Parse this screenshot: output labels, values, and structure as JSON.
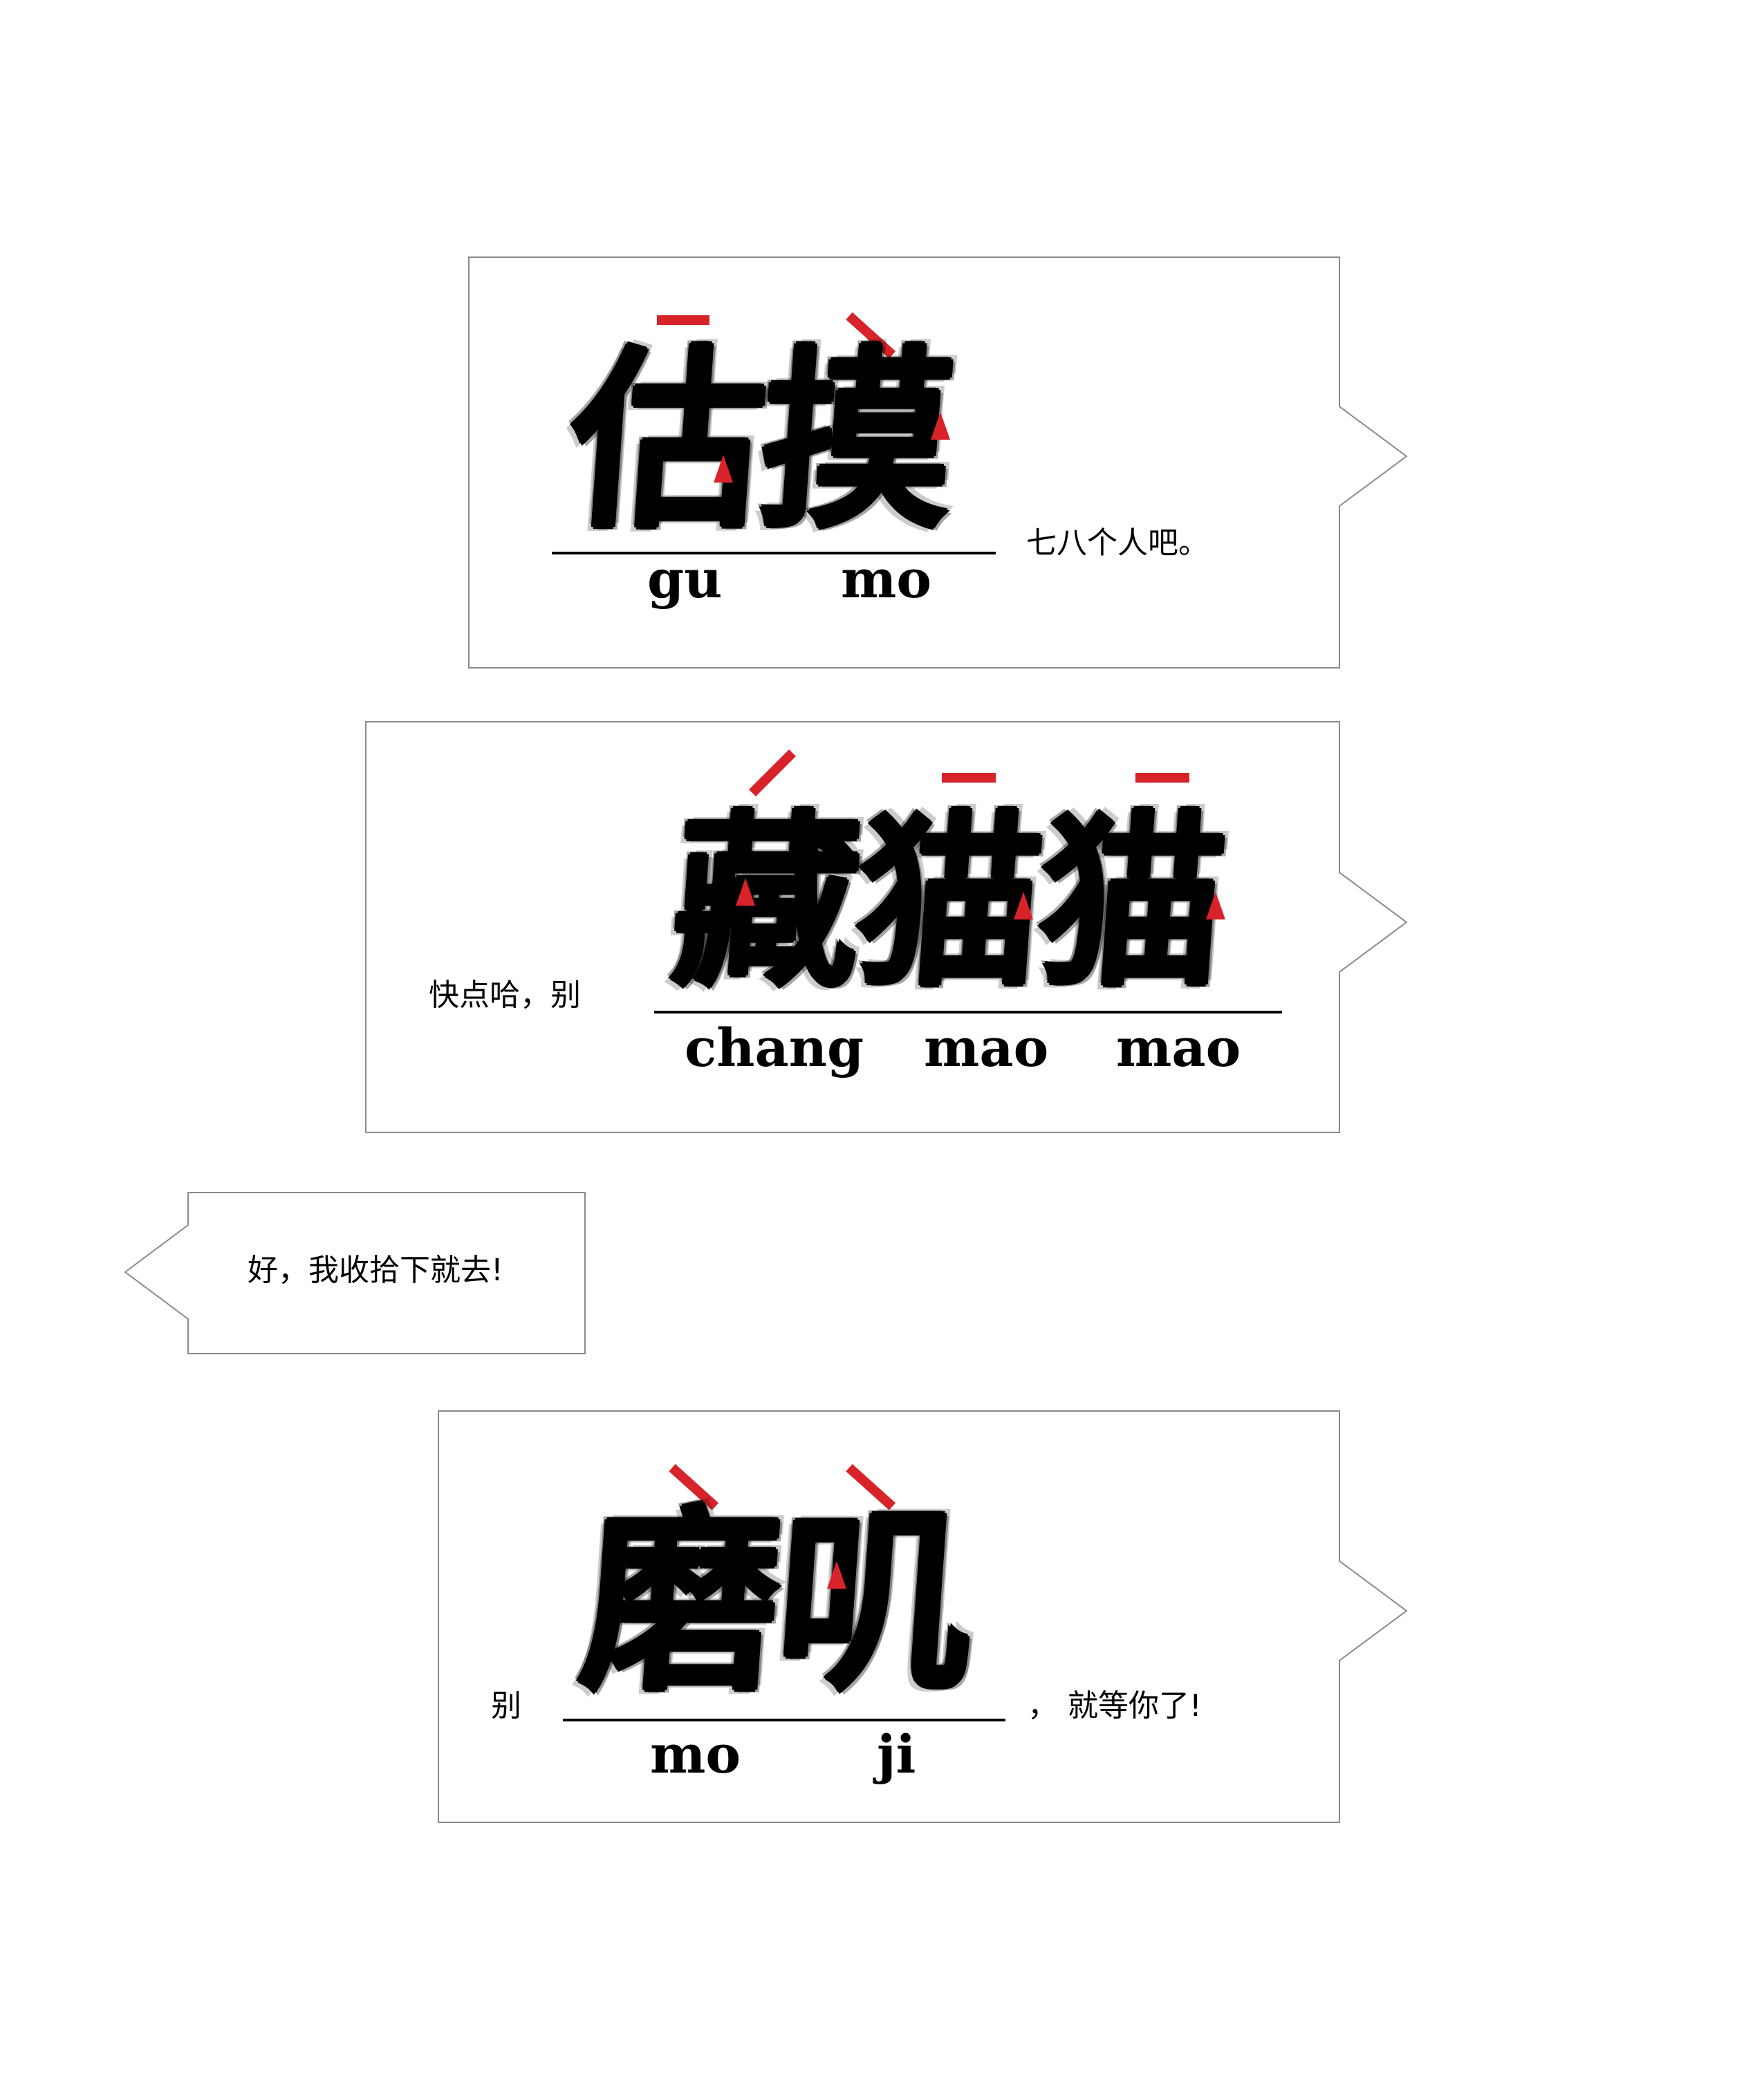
{
  "accent_color": "#d8232a",
  "bubbles": [
    {
      "pre_text": "",
      "hanzi": "估摸",
      "pinyin": [
        "gu",
        "mo"
      ],
      "post_text": "七八个人吧。"
    },
    {
      "pre_text": "快点哈，别",
      "hanzi": "藏猫猫",
      "pinyin": [
        "chang",
        "mao",
        "mao"
      ],
      "post_text": ""
    },
    {
      "text": "好，我收拾下就去!"
    },
    {
      "pre_text": "别",
      "hanzi": "磨叽",
      "pinyin": [
        "mo",
        "ji"
      ],
      "post_text": "， 就等你了!"
    }
  ]
}
